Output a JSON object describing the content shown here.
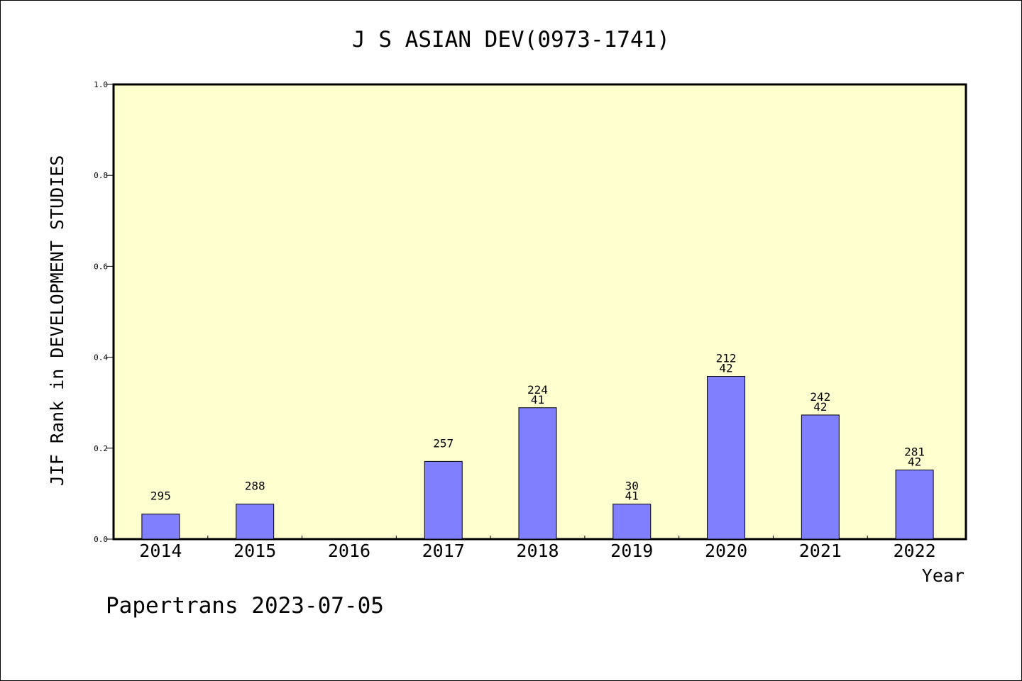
{
  "chart_data": {
    "type": "bar",
    "title": "J S ASIAN DEV(0973-1741)",
    "xlabel": "Year",
    "ylabel": "JIF Rank in DEVELOPMENT STUDIES",
    "footer": "Papertrans 2023-07-05",
    "ylim": [
      0,
      1.0
    ],
    "yticks": [
      "0.0",
      "0.2",
      "0.4",
      "0.6",
      "0.8",
      "1.0"
    ],
    "categories": [
      "2014",
      "2015",
      "2016",
      "2017",
      "2018",
      "2019",
      "2020",
      "2021",
      "2022"
    ],
    "values": [
      0.055,
      0.077,
      null,
      0.171,
      0.289,
      0.077,
      0.358,
      0.273,
      0.152
    ],
    "labels": [
      [
        "295"
      ],
      [
        "288"
      ],
      [],
      [
        "257"
      ],
      [
        "224",
        "41"
      ],
      [
        "30",
        "41"
      ],
      [
        "212",
        "42"
      ],
      [
        "242",
        "42"
      ],
      [
        "281",
        "42"
      ]
    ],
    "grid": false,
    "colors": {
      "bar": "#8080ff",
      "plot_background": "#ffffd0"
    }
  }
}
